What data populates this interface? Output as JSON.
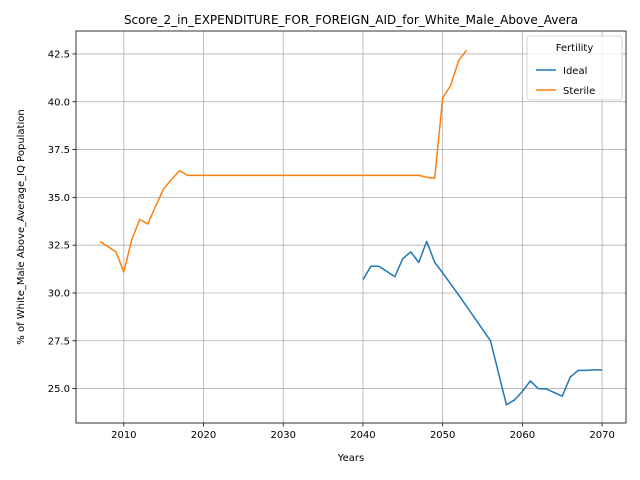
{
  "chart_data": {
    "type": "line",
    "title": "Score_2_in_EXPENDITURE_FOR_FOREIGN_AID_for_White_Male_Above_Avera",
    "xlabel": "Years",
    "ylabel": "% of White_Male Above_Average_IQ Population",
    "xlim": [
      2004,
      2073
    ],
    "ylim": [
      23.2,
      43.7
    ],
    "xticks": [
      2010,
      2020,
      2030,
      2040,
      2050,
      2060,
      2070
    ],
    "yticks": [
      25.0,
      27.5,
      30.0,
      32.5,
      35.0,
      37.5,
      40.0,
      42.5
    ],
    "grid": true,
    "legend": {
      "title": "Fertility",
      "placement": "top-right"
    },
    "series": [
      {
        "name": "Ideal",
        "color": "#1f77b4",
        "x": [
          2040,
          2041,
          2042,
          2044,
          2045,
          2046,
          2047,
          2048,
          2049,
          2050,
          2052,
          2054,
          2056,
          2058,
          2059,
          2060,
          2061,
          2062,
          2063,
          2065,
          2066,
          2067,
          2068,
          2069,
          2070
        ],
        "y": [
          30.7,
          31.4,
          31.4,
          30.85,
          31.8,
          32.15,
          31.6,
          32.7,
          31.6,
          31.05,
          29.9,
          28.7,
          27.5,
          24.15,
          24.4,
          24.85,
          25.4,
          25.0,
          24.98,
          24.6,
          25.6,
          25.95,
          25.95,
          25.98,
          25.98
        ]
      },
      {
        "name": "Sterile",
        "color": "#ff7f0e",
        "x": [
          2007,
          2009,
          2010,
          2011,
          2012,
          2013,
          2014,
          2015,
          2016,
          2017,
          2018,
          2020,
          2025,
          2030,
          2035,
          2040,
          2045,
          2047,
          2048,
          2049,
          2050,
          2051,
          2052,
          2053
        ],
        "y": [
          32.7,
          32.15,
          31.1,
          32.8,
          33.85,
          33.6,
          34.55,
          35.45,
          35.95,
          36.4,
          36.15,
          36.15,
          36.15,
          36.15,
          36.15,
          36.15,
          36.15,
          36.15,
          36.05,
          36.0,
          40.2,
          40.85,
          42.15,
          42.7
        ]
      }
    ]
  }
}
